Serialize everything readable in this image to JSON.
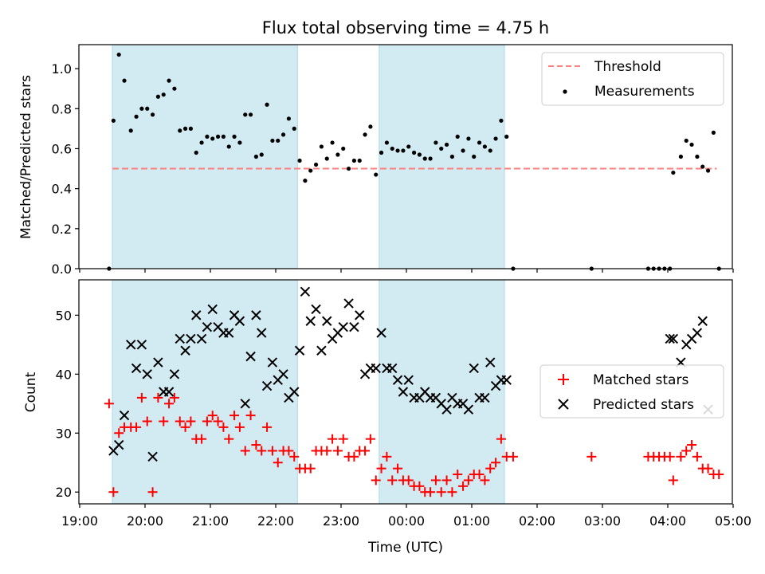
{
  "chart_data": [
    {
      "type": "scatter",
      "title": "Flux total observing time = 4.75 h",
      "xlabel": "",
      "ylabel": "Matched/Predicted stars",
      "ylim": [
        0,
        1.12
      ],
      "yticks": [
        "0.0",
        "0.2",
        "0.4",
        "0.6",
        "0.8",
        "1.0"
      ],
      "legend": {
        "position": "top-right",
        "entries": [
          "Threshold",
          "Measurements"
        ]
      },
      "threshold": {
        "name": "Threshold",
        "value": 0.5,
        "x_start": "19:30",
        "x_end": "04:45",
        "color": "#ff7f7f"
      },
      "series": [
        {
          "name": "Measurements",
          "color": "#000000",
          "marker": "dot",
          "x": [
            "19:27",
            "19:31",
            "19:36",
            "19:41",
            "19:47",
            "19:52",
            "19:57",
            "20:02",
            "20:07",
            "20:12",
            "20:17",
            "20:22",
            "20:27",
            "20:32",
            "20:37",
            "20:42",
            "20:47",
            "20:52",
            "20:57",
            "21:02",
            "21:07",
            "21:12",
            "21:17",
            "21:22",
            "21:27",
            "21:32",
            "21:37",
            "21:42",
            "21:47",
            "21:52",
            "21:57",
            "22:02",
            "22:07",
            "22:12",
            "22:17",
            "22:22",
            "22:27",
            "22:32",
            "22:37",
            "22:42",
            "22:47",
            "22:52",
            "22:57",
            "23:02",
            "23:07",
            "23:12",
            "23:17",
            "23:22",
            "23:27",
            "23:32",
            "23:37",
            "23:42",
            "23:47",
            "23:52",
            "23:57",
            "00:02",
            "00:07",
            "00:12",
            "00:17",
            "00:22",
            "00:27",
            "00:32",
            "00:37",
            "00:42",
            "00:47",
            "00:52",
            "00:57",
            "01:02",
            "01:07",
            "01:12",
            "01:17",
            "01:22",
            "01:27",
            "01:32",
            "01:38",
            "02:50",
            "03:42",
            "03:47",
            "03:52",
            "03:57",
            "04:02",
            "04:05",
            "04:12",
            "04:17",
            "04:22",
            "04:27",
            "04:32",
            "04:37",
            "04:42",
            "04:47"
          ],
          "y": [
            0.0,
            0.74,
            1.07,
            0.94,
            0.69,
            0.76,
            0.8,
            0.8,
            0.77,
            0.86,
            0.87,
            0.94,
            0.9,
            0.69,
            0.7,
            0.7,
            0.58,
            0.63,
            0.66,
            0.65,
            0.66,
            0.66,
            0.61,
            0.66,
            0.63,
            0.77,
            0.77,
            0.56,
            0.57,
            0.82,
            0.64,
            0.64,
            0.67,
            0.75,
            0.7,
            0.54,
            0.44,
            0.49,
            0.52,
            0.61,
            0.55,
            0.63,
            0.57,
            0.6,
            0.5,
            0.54,
            0.54,
            0.67,
            0.71,
            0.47,
            0.58,
            0.63,
            0.6,
            0.59,
            0.59,
            0.61,
            0.58,
            0.57,
            0.55,
            0.55,
            0.63,
            0.6,
            0.62,
            0.56,
            0.66,
            0.59,
            0.65,
            0.56,
            0.63,
            0.61,
            0.59,
            0.65,
            0.74,
            0.66,
            0.0,
            0.0,
            0.0,
            0.0,
            0.0,
            0.0,
            0.0,
            0.48,
            0.56,
            0.64,
            0.62,
            0.56,
            0.51,
            0.49,
            0.68,
            0.0
          ]
        }
      ]
    },
    {
      "type": "scatter",
      "title": "",
      "xlabel": "Time (UTC)",
      "ylabel": "Count",
      "ylim": [
        18,
        56
      ],
      "yticks": [
        "20",
        "30",
        "40",
        "50"
      ],
      "xlim": [
        "19:00",
        "05:00"
      ],
      "xticks": [
        "19:00",
        "20:00",
        "21:00",
        "22:00",
        "23:00",
        "00:00",
        "01:00",
        "02:00",
        "03:00",
        "04:00",
        "05:00"
      ],
      "legend": {
        "position": "center-right",
        "entries": [
          "Matched stars",
          "Predicted stars"
        ]
      },
      "series": [
        {
          "name": "Matched stars",
          "color": "#ff0000",
          "marker": "plus",
          "x": [
            "19:27",
            "19:31",
            "19:36",
            "19:41",
            "19:47",
            "19:52",
            "19:57",
            "20:02",
            "20:07",
            "20:12",
            "20:17",
            "20:22",
            "20:27",
            "20:32",
            "20:37",
            "20:42",
            "20:47",
            "20:52",
            "20:57",
            "21:02",
            "21:07",
            "21:12",
            "21:17",
            "21:22",
            "21:27",
            "21:32",
            "21:37",
            "21:42",
            "21:47",
            "21:52",
            "21:57",
            "22:02",
            "22:07",
            "22:12",
            "22:17",
            "22:22",
            "22:27",
            "22:32",
            "22:37",
            "22:42",
            "22:47",
            "22:52",
            "22:57",
            "23:02",
            "23:07",
            "23:12",
            "23:17",
            "23:22",
            "23:27",
            "23:32",
            "23:37",
            "23:42",
            "23:47",
            "23:52",
            "23:57",
            "00:02",
            "00:07",
            "00:12",
            "00:17",
            "00:22",
            "00:27",
            "00:32",
            "00:37",
            "00:42",
            "00:47",
            "00:52",
            "00:57",
            "01:02",
            "01:07",
            "01:12",
            "01:17",
            "01:22",
            "01:27",
            "01:32",
            "01:38",
            "02:50",
            "03:42",
            "03:47",
            "03:52",
            "03:57",
            "04:02",
            "04:05",
            "04:12",
            "04:17",
            "04:22",
            "04:27",
            "04:32",
            "04:37",
            "04:42",
            "04:47"
          ],
          "y": [
            35,
            20,
            30,
            31,
            31,
            31,
            36,
            32,
            20,
            36,
            32,
            35,
            36,
            32,
            31,
            32,
            29,
            29,
            32,
            33,
            32,
            31,
            29,
            33,
            31,
            27,
            33,
            28,
            27,
            31,
            27,
            25,
            27,
            27,
            26,
            24,
            24,
            24,
            27,
            27,
            27,
            29,
            27,
            29,
            26,
            26,
            27,
            27,
            29,
            22,
            24,
            26,
            22,
            24,
            22,
            22,
            21,
            21,
            20,
            20,
            22,
            20,
            22,
            20,
            23,
            21,
            22,
            23,
            23,
            22,
            24,
            25,
            29,
            26,
            26,
            26,
            26,
            26,
            26,
            26,
            26,
            22,
            26,
            27,
            28,
            26,
            24,
            24,
            23,
            23
          ]
        },
        {
          "name": "Predicted stars",
          "color": "#000000",
          "marker": "x",
          "x": [
            "19:31",
            "19:36",
            "19:41",
            "19:47",
            "19:52",
            "19:57",
            "20:02",
            "20:07",
            "20:12",
            "20:17",
            "20:22",
            "20:27",
            "20:32",
            "20:37",
            "20:42",
            "20:47",
            "20:52",
            "20:57",
            "21:02",
            "21:07",
            "21:12",
            "21:17",
            "21:22",
            "21:27",
            "21:32",
            "21:37",
            "21:42",
            "21:47",
            "21:52",
            "21:57",
            "22:02",
            "22:07",
            "22:12",
            "22:17",
            "22:22",
            "22:27",
            "22:32",
            "22:37",
            "22:42",
            "22:47",
            "22:52",
            "22:57",
            "23:02",
            "23:07",
            "23:12",
            "23:17",
            "23:22",
            "23:27",
            "23:32",
            "23:37",
            "23:42",
            "23:47",
            "23:52",
            "23:57",
            "00:02",
            "00:07",
            "00:12",
            "00:17",
            "00:22",
            "00:27",
            "00:32",
            "00:37",
            "00:42",
            "00:47",
            "00:52",
            "00:57",
            "01:02",
            "01:07",
            "01:12",
            "01:17",
            "01:22",
            "01:27",
            "01:32",
            "04:02",
            "04:05",
            "04:12",
            "04:17",
            "04:22",
            "04:27",
            "04:32",
            "04:37"
          ],
          "y": [
            27,
            28,
            33,
            45,
            41,
            45,
            40,
            26,
            42,
            37,
            37,
            40,
            46,
            44,
            46,
            50,
            46,
            48,
            51,
            48,
            47,
            47,
            50,
            49,
            35,
            43,
            50,
            47,
            38,
            42,
            39,
            40,
            36,
            37,
            44,
            54,
            49,
            51,
            44,
            49,
            46,
            47,
            48,
            52,
            48,
            50,
            40,
            41,
            41,
            47,
            41,
            41,
            39,
            37,
            39,
            36,
            36,
            37,
            36,
            36,
            35,
            34,
            36,
            35,
            35,
            34,
            41,
            36,
            36,
            42,
            38,
            39,
            39,
            46,
            46,
            42,
            45,
            46,
            47,
            49,
            34
          ]
        }
      ]
    }
  ],
  "shaded_intervals": [
    {
      "start": "19:30",
      "end": "22:20",
      "color": "#add8e6"
    },
    {
      "start": "23:35",
      "end": "01:30",
      "color": "#add8e6"
    }
  ]
}
